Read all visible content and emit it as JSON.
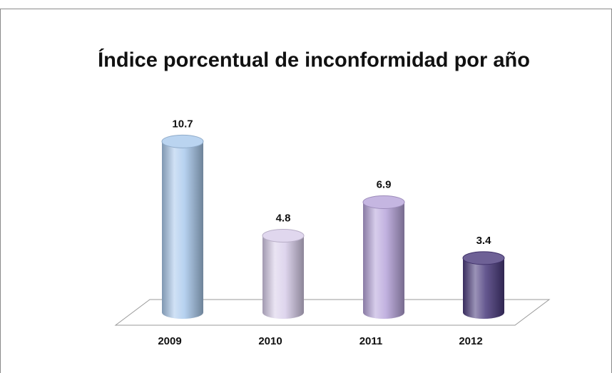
{
  "chart_data": {
    "type": "bar",
    "title": "Índice porcentual de inconformidad por año",
    "categories": [
      "2009",
      "2010",
      "2011",
      "2012"
    ],
    "values": [
      10.7,
      4.8,
      6.9,
      3.4
    ],
    "colors": [
      "#a9c9ec",
      "#d8cdea",
      "#b7a4da",
      "#4a3a7c"
    ]
  }
}
